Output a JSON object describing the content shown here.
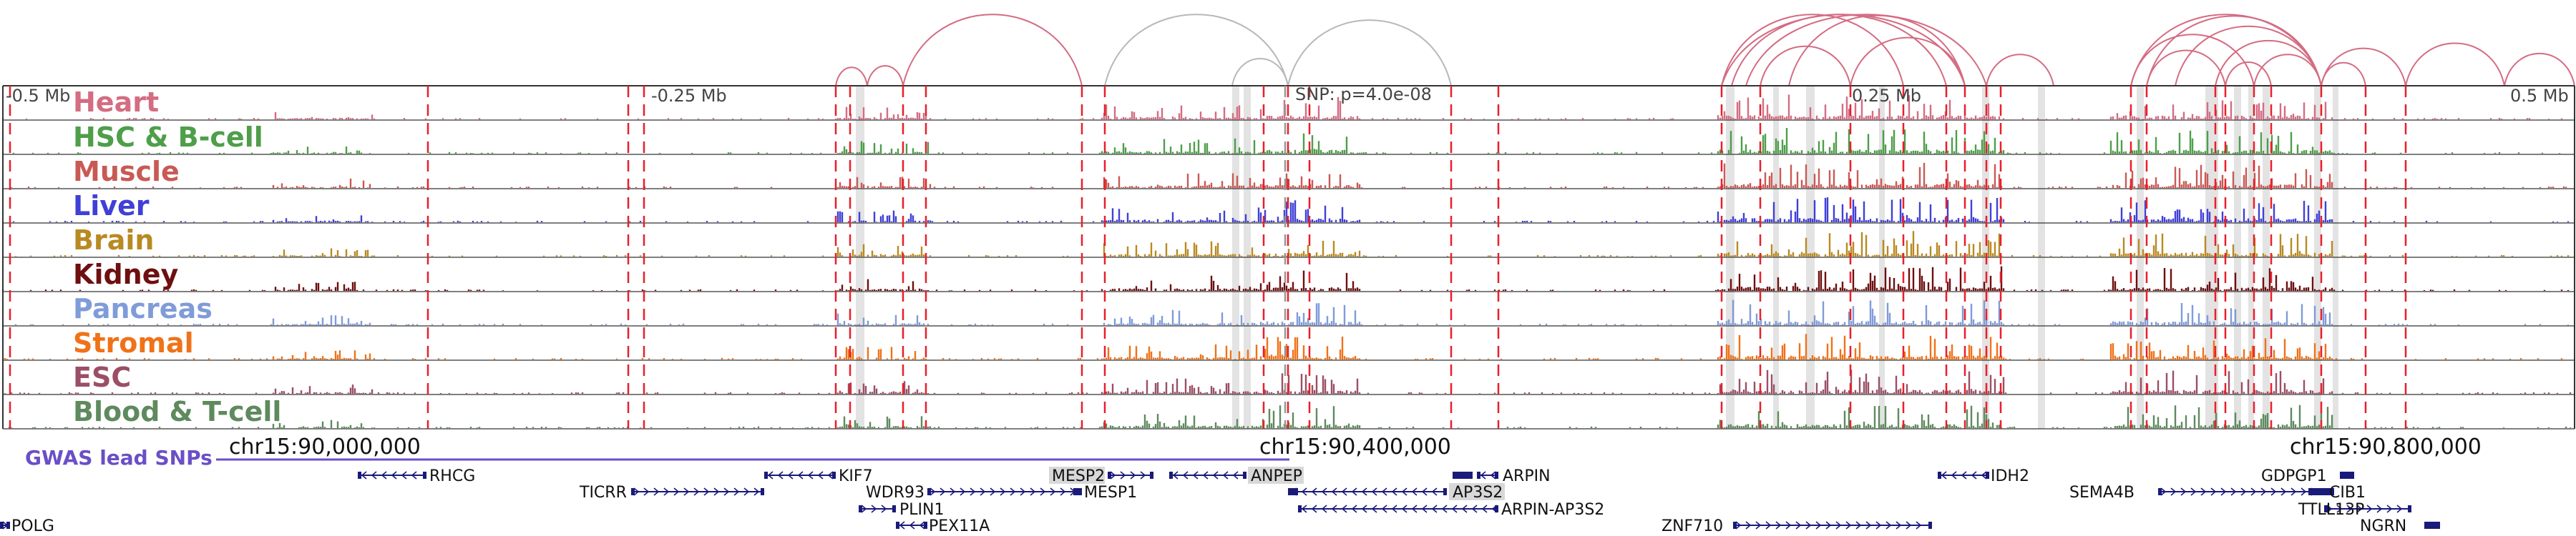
{
  "region": {
    "mb_ticks": [
      "-0.5 Mb",
      "-0.25 Mb",
      "0.25 Mb",
      "0.5 Mb"
    ],
    "snp_label": "SNP: p=4.0e-08",
    "coord_ticks": [
      "chr15:90,000,000",
      "chr15:90,400,000",
      "chr15:90,800,000"
    ],
    "gwas_label": "GWAS lead SNPs"
  },
  "tracks": [
    {
      "name": "Heart",
      "color": "#d46c82"
    },
    {
      "name": "HSC & B-cell",
      "color": "#4e9e4a"
    },
    {
      "name": "Muscle",
      "color": "#c85a55"
    },
    {
      "name": "Liver",
      "color": "#4040d6"
    },
    {
      "name": "Brain",
      "color": "#b88a22"
    },
    {
      "name": "Kidney",
      "color": "#6e0f10"
    },
    {
      "name": "Pancreas",
      "color": "#7f9bd9"
    },
    {
      "name": "Stromal",
      "color": "#f07218"
    },
    {
      "name": "ESC",
      "color": "#9b4f66"
    },
    {
      "name": "Blood & T-cell",
      "color": "#5e8a5e"
    }
  ],
  "genes": [
    {
      "name": "RHCG",
      "highlight": false
    },
    {
      "name": "KIF7",
      "highlight": false
    },
    {
      "name": "MESP2",
      "highlight": true
    },
    {
      "name": "ANPEP",
      "highlight": true
    },
    {
      "name": "ARPIN",
      "highlight": false
    },
    {
      "name": "TICRR",
      "highlight": false
    },
    {
      "name": "WDR93",
      "highlight": false
    },
    {
      "name": "MESP1",
      "highlight": false
    },
    {
      "name": "AP3S2",
      "highlight": true
    },
    {
      "name": "PLIN1",
      "highlight": false
    },
    {
      "name": "ARPIN-AP3S2",
      "highlight": false
    },
    {
      "name": "PEX11A",
      "highlight": false
    },
    {
      "name": "POLG",
      "highlight": false
    },
    {
      "name": "ZNF710",
      "highlight": false
    },
    {
      "name": "IDH2",
      "highlight": false
    },
    {
      "name": "SEMA4B",
      "highlight": false
    },
    {
      "name": "GDPGP1",
      "highlight": false
    },
    {
      "name": "CIB1",
      "highlight": false
    },
    {
      "name": "TTLL13P",
      "highlight": false
    },
    {
      "name": "NGRN",
      "highlight": false
    }
  ],
  "colors": {
    "arc": "#d46c82",
    "arc_gray": "#b8b8b8",
    "red_line": "#e8202a",
    "gene": "#1a1a7a",
    "gwas": "#6a4fc6"
  }
}
